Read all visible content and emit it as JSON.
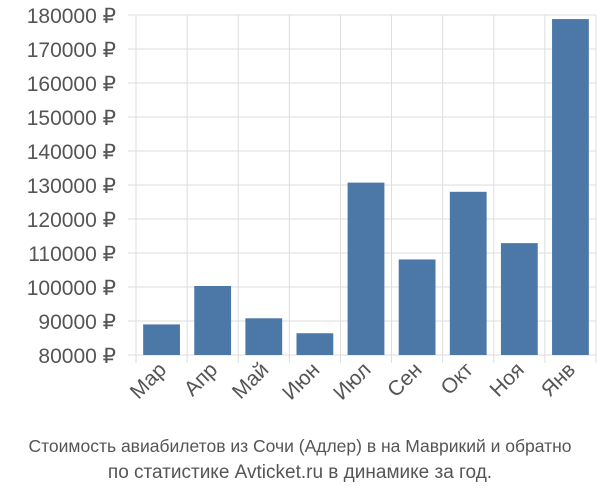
{
  "chart_data": {
    "type": "bar",
    "categories": [
      "Мар",
      "Апр",
      "Май",
      "Июн",
      "Июл",
      "Сен",
      "Окт",
      "Ноя",
      "Янв"
    ],
    "values": [
      89000,
      100300,
      90800,
      86400,
      130700,
      108100,
      128000,
      112900,
      178800
    ],
    "ylim": [
      80000,
      180000
    ],
    "yticks": [
      80000,
      90000,
      100000,
      110000,
      120000,
      130000,
      140000,
      150000,
      160000,
      170000,
      180000
    ],
    "tick_suffix": " ₽",
    "grid": true,
    "bar_color": "#4c78a8",
    "grid_color": "#dddddd"
  },
  "caption": {
    "line1": "Стоимость авиабилетов из Сочи (Адлер) в на Маврикий и обратно",
    "line2": "по статистике Avticket.ru в динамике за год."
  }
}
